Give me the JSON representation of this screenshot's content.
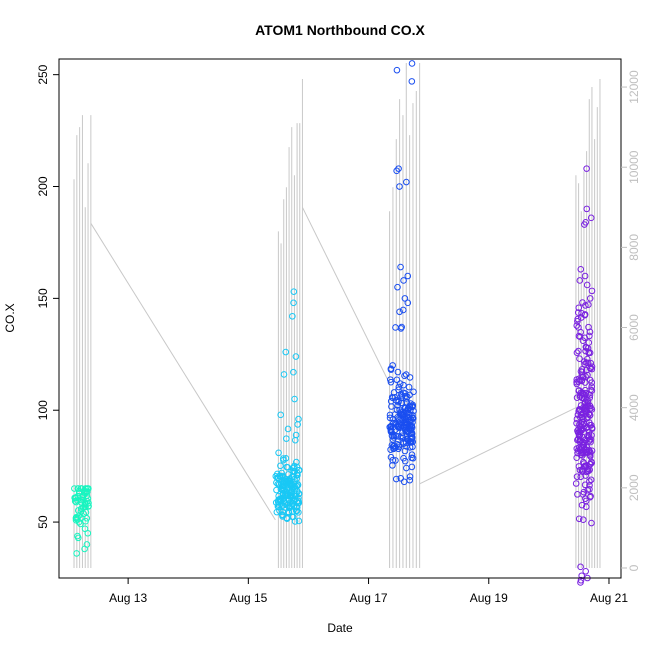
{
  "chart_data": {
    "type": "scatter",
    "title": "ATOM1 Northbound CO.X",
    "xlabel": "Date",
    "ylabel": "CO.X",
    "y_ticks": [
      50,
      100,
      150,
      200,
      250
    ],
    "y_range": [
      25,
      257
    ],
    "y2_ticks": [
      0,
      2000,
      4000,
      6000,
      8000,
      10000,
      12000
    ],
    "y2_range": [
      -250,
      12700
    ],
    "x_ticks": [
      {
        "label": "Aug 13",
        "day": 13
      },
      {
        "label": "Aug 15",
        "day": 15
      },
      {
        "label": "Aug 17",
        "day": 17
      },
      {
        "label": "Aug 19",
        "day": 19
      },
      {
        "label": "Aug 21",
        "day": 21
      }
    ],
    "x_range_days": [
      11.85,
      21.2
    ],
    "colors": {
      "aug12": "#19f5c0",
      "aug15": "#19c8f5",
      "aug17": "#1a4ef0",
      "aug20": "#7a22e0",
      "secondary_series": "#c8c8c8",
      "axis": "#000000",
      "secondary_axis": "#bfbfbf"
    },
    "clusters": [
      {
        "day_start": 12.1,
        "day_end": 12.35,
        "color_key": "aug12",
        "y_min": 35,
        "y_max": 65,
        "y_center": 60,
        "n": 60,
        "seed": 3,
        "outliers": [
          47,
          45,
          52,
          50,
          40,
          38,
          36
        ]
      },
      {
        "day_start": 15.45,
        "day_end": 15.85,
        "color_key": "aug15",
        "y_min": 42,
        "y_max": 153,
        "y_center": 65,
        "n": 170,
        "seed": 7,
        "outliers": [
          153,
          148,
          142,
          126,
          124,
          117,
          116,
          105
        ]
      },
      {
        "day_start": 17.35,
        "day_end": 17.75,
        "color_key": "aug17",
        "y_min": 60,
        "y_max": 255,
        "y_center": 95,
        "n": 190,
        "seed": 11,
        "outliers": [
          255,
          252,
          247,
          208,
          207,
          202,
          200,
          164,
          160,
          158,
          155,
          150,
          144,
          137
        ]
      },
      {
        "day_start": 20.45,
        "day_end": 20.72,
        "color_key": "aug20",
        "y_min": 23,
        "y_max": 208,
        "y_center": 97,
        "n": 240,
        "seed": 19,
        "outliers": [
          208,
          190,
          186,
          184,
          183,
          163,
          160,
          158,
          156,
          150,
          137,
          135,
          30,
          28,
          26,
          25,
          24,
          23
        ]
      }
    ],
    "secondary_series": {
      "name": "",
      "baseline": 0,
      "spikes": [
        {
          "day_start": 12.1,
          "day_end": 12.38,
          "peaks": [
            9700,
            10800,
            11000,
            11300,
            9000,
            10100,
            11300
          ]
        },
        {
          "day_start": 15.5,
          "day_end": 15.9,
          "peaks": [
            8400,
            8100,
            9200,
            9500,
            10500,
            11000,
            9800,
            11100,
            11100,
            12200
          ]
        },
        {
          "day_start": 17.35,
          "day_end": 17.85,
          "peaks": [
            8900,
            9500,
            10700,
            11700,
            11300,
            12600,
            10800,
            11600,
            11900,
            12600
          ]
        },
        {
          "day_start": 20.45,
          "day_end": 20.85,
          "peaks": [
            9800,
            9600,
            8900,
            9900,
            10400,
            11700,
            12000,
            10700,
            11500,
            12200
          ]
        }
      ],
      "connectors": [
        {
          "from_day": 12.38,
          "from_val": 8600,
          "to_day": 15.45,
          "to_val": 1200
        },
        {
          "from_day": 15.9,
          "from_val": 9000,
          "to_day": 17.35,
          "to_val": 4600
        },
        {
          "from_day": 17.85,
          "from_val": 2100,
          "to_day": 20.45,
          "to_val": 4000
        }
      ]
    }
  }
}
